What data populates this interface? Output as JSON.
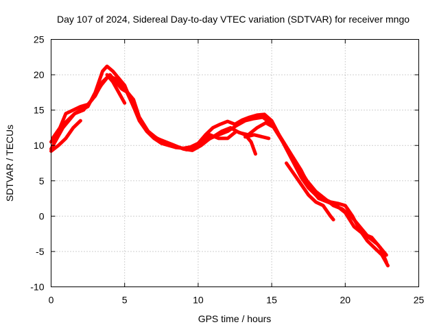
{
  "chart_data": {
    "type": "line",
    "title": "Day 107 of 2024, Sidereal Day-to-day VTEC variation (SDTVAR) for receiver mngo",
    "xlabel": "GPS time / hours",
    "ylabel": "SDTVAR / TECUs",
    "xlim": [
      0,
      25
    ],
    "ylim": [
      -10,
      25
    ],
    "xticks": [
      0,
      5,
      10,
      15,
      20,
      25
    ],
    "yticks": [
      -10,
      -5,
      0,
      5,
      10,
      15,
      20,
      25
    ],
    "grid": true,
    "line_color": "#ff0000",
    "series": [
      {
        "name": "track-1",
        "x": [
          0.0,
          0.4,
          0.8,
          1.2,
          1.6,
          2.0,
          2.5,
          3.0,
          3.5,
          3.8,
          4.2,
          4.6,
          5.0,
          5.5,
          6.0,
          6.5,
          7.0,
          7.5,
          8.0,
          8.5,
          9.0,
          9.5,
          10.0,
          10.5,
          11.0,
          11.5,
          12.0,
          12.5,
          13.0,
          13.5,
          14.0,
          14.5,
          15.0,
          15.5,
          16.0,
          16.5,
          17.0,
          17.5,
          18.0,
          18.5,
          19.0,
          19.5,
          20.0,
          20.5,
          21.0,
          21.5,
          22.0,
          22.5,
          22.9
        ],
        "y": [
          9.5,
          11.0,
          12.5,
          13.5,
          14.5,
          15.0,
          15.5,
          17.5,
          20.5,
          21.2,
          20.5,
          19.5,
          18.5,
          16.0,
          13.5,
          12.0,
          11.0,
          10.3,
          10.0,
          9.7,
          9.6,
          9.8,
          10.3,
          11.5,
          12.5,
          13.0,
          13.4,
          13.0,
          13.6,
          14.0,
          14.3,
          14.4,
          13.5,
          11.5,
          9.5,
          7.5,
          5.5,
          4.0,
          3.0,
          2.5,
          2.0,
          1.8,
          1.5,
          0.0,
          -2.0,
          -3.5,
          -4.5,
          -5.5,
          -7.0
        ]
      },
      {
        "name": "track-2",
        "x": [
          0.0,
          0.5,
          1.0,
          1.5,
          2.0,
          2.5,
          3.0,
          3.5,
          4.0,
          4.4,
          4.8,
          5.2,
          5.6,
          6.0,
          6.6,
          7.2,
          7.8,
          8.4,
          9.0,
          9.6,
          10.2,
          10.8,
          11.4,
          12.0,
          12.6,
          13.2,
          13.8,
          14.4,
          15.0,
          15.6,
          16.2,
          16.8,
          17.4,
          18.0,
          18.6,
          19.2,
          19.8,
          20.4,
          21.0,
          21.6,
          22.2,
          22.8
        ],
        "y": [
          10.5,
          12.0,
          14.5,
          15.0,
          15.5,
          15.8,
          17.0,
          19.0,
          20.0,
          19.0,
          18.0,
          17.5,
          16.5,
          14.0,
          12.0,
          11.0,
          10.5,
          10.0,
          9.5,
          9.3,
          10.0,
          11.0,
          11.5,
          12.0,
          12.8,
          13.5,
          13.8,
          14.0,
          13.0,
          11.0,
          9.0,
          7.0,
          5.0,
          3.5,
          2.5,
          1.5,
          1.0,
          0.0,
          -1.5,
          -3.0,
          -4.0,
          -5.5
        ]
      },
      {
        "name": "track-3",
        "x": [
          0.1,
          0.6,
          1.1,
          1.6,
          2.2,
          2.8,
          3.4,
          3.9,
          4.3,
          4.7,
          5.1,
          5.6,
          6.2,
          6.8,
          7.4,
          8.0,
          8.6,
          9.2,
          9.8,
          10.4,
          11.0,
          11.6,
          12.2,
          12.8,
          13.4,
          14.0,
          14.6,
          15.2,
          15.8,
          16.4,
          17.0,
          17.6,
          18.2,
          18.8,
          19.4,
          20.0,
          20.6,
          21.2,
          21.8,
          22.4,
          22.8
        ],
        "y": [
          11.0,
          12.5,
          13.5,
          14.5,
          15.0,
          16.5,
          18.5,
          19.8,
          19.5,
          18.8,
          17.8,
          15.5,
          13.0,
          11.5,
          10.8,
          10.2,
          9.8,
          9.4,
          9.6,
          10.5,
          11.2,
          12.0,
          12.5,
          11.8,
          11.5,
          12.5,
          13.2,
          12.5,
          10.5,
          8.5,
          6.5,
          4.0,
          2.5,
          2.0,
          1.5,
          0.5,
          -1.5,
          -2.5,
          -3.0,
          -4.5,
          -6.5
        ]
      },
      {
        "name": "track-4",
        "x": [
          0.0,
          0.5,
          1.0,
          1.5,
          2.0
        ],
        "y": [
          9.2,
          10.0,
          11.0,
          12.5,
          13.5
        ]
      },
      {
        "name": "track-5",
        "x": [
          3.8,
          4.2,
          4.6,
          5.0
        ],
        "y": [
          20.0,
          19.0,
          17.5,
          16.0
        ]
      },
      {
        "name": "track-6",
        "x": [
          10.2,
          10.8,
          11.4,
          12.0,
          12.6,
          13.2,
          13.6,
          13.9
        ],
        "y": [
          10.5,
          11.5,
          11.0,
          11.0,
          12.0,
          11.5,
          10.5,
          8.8
        ]
      },
      {
        "name": "track-7",
        "x": [
          13.2,
          13.8,
          14.4,
          14.8
        ],
        "y": [
          11.2,
          11.5,
          11.2,
          11.0
        ]
      },
      {
        "name": "track-8",
        "x": [
          16.0,
          16.5,
          17.0,
          17.5,
          18.0,
          18.5,
          19.0,
          19.2
        ],
        "y": [
          7.5,
          6.0,
          4.5,
          3.0,
          2.0,
          1.5,
          0.0,
          -0.5
        ]
      }
    ]
  }
}
